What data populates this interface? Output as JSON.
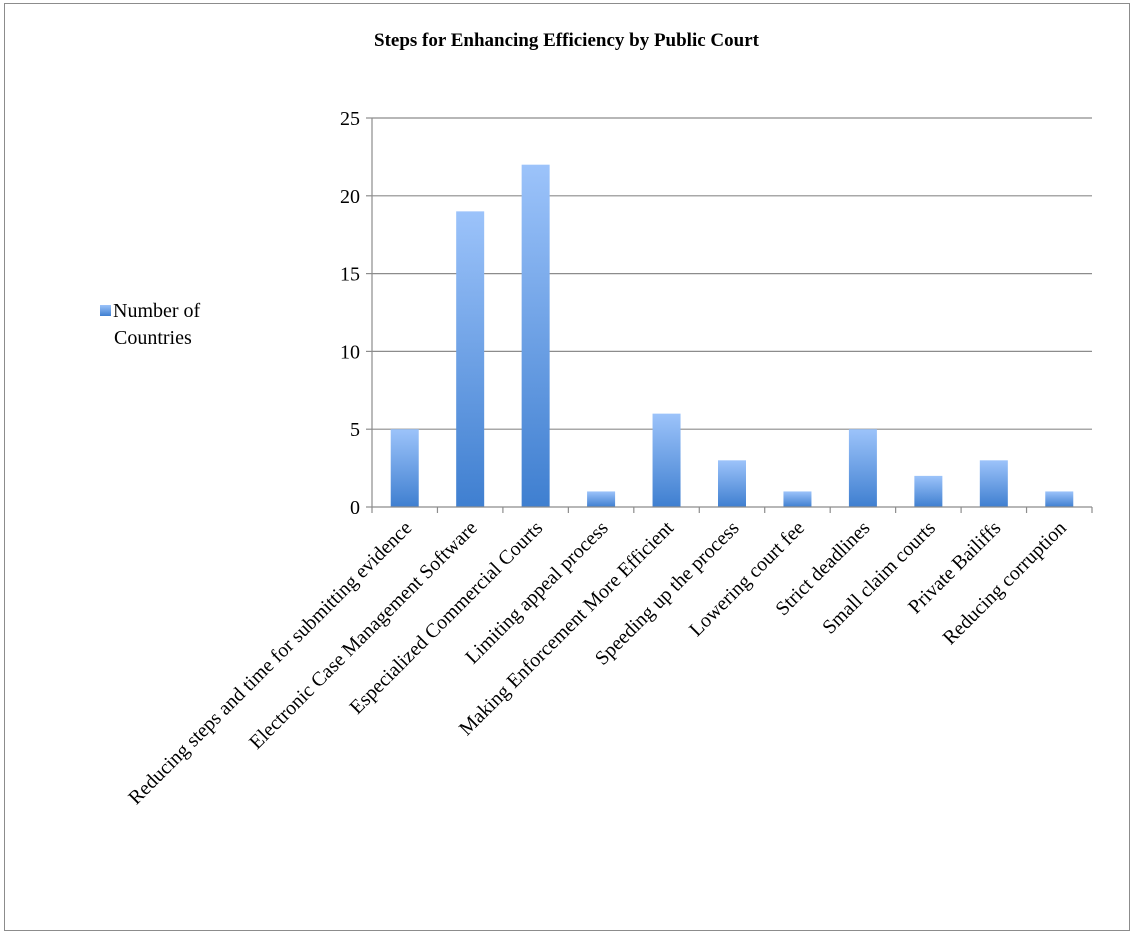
{
  "chart_data": {
    "type": "bar",
    "title": "Steps for Enhancing Efficiency by Public Court",
    "xlabel": "",
    "ylabel": "",
    "ylim": [
      0,
      25
    ],
    "yticks": [
      0,
      5,
      10,
      15,
      20,
      25
    ],
    "grid": true,
    "legend_position": "left",
    "categories": [
      "Reducing steps and time for submitting evidence",
      "Electronic Case Management Software",
      "Especialized Commercial Courts",
      "Limiting appeal process",
      "Making Enforcement More Efficient",
      "Speeding up the process",
      "Lowering court fee",
      "Strict deadlines",
      "Small claim courts",
      "Private Bailiffs",
      "Reducing corruption"
    ],
    "series": [
      {
        "name": "Number of Countries",
        "values": [
          5,
          19,
          22,
          1,
          6,
          3,
          1,
          5,
          2,
          3,
          1
        ]
      }
    ],
    "colors": {
      "bar_top": "#9cc3fa",
      "bar_bottom": "#3f7fd0",
      "grid": "#8c8c8c",
      "axis": "#8c8c8c"
    }
  },
  "legend": {
    "line1": "Number of",
    "line2": "Countries"
  }
}
